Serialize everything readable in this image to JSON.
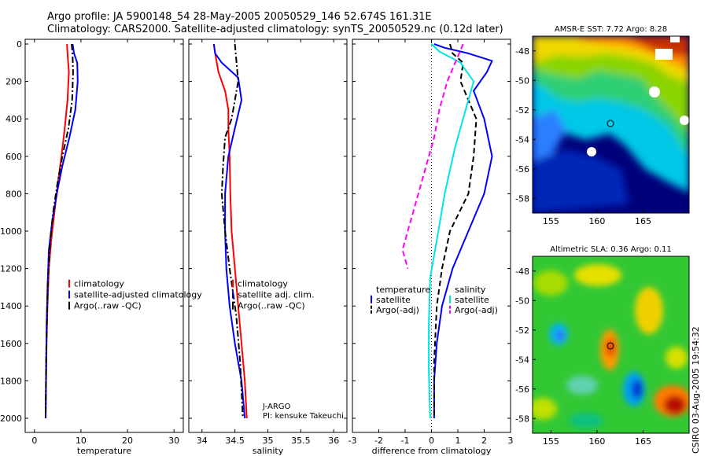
{
  "header": {
    "line1": "Argo profile: JA 5900148_54 28-May-2005 20050529_146 52.674S 161.31E",
    "line2": "Climatology: CARS2000. Satellite-adjusted climatology: synTS_20050529.nc (0.12d later)"
  },
  "credit": "CSIRO 03-Aug-2005 19:54:32",
  "colors": {
    "climatology": "#ff0000",
    "satellite": "#0000ff",
    "argo": "#000000",
    "salinity_satellite": "#00e5e5",
    "salinity_argo": "#ff00ff"
  },
  "chart_data": [
    {
      "type": "line",
      "id": "temperature",
      "xlabel": "temperature",
      "ylabel": "",
      "xlim": [
        -2,
        32
      ],
      "ylim": [
        2000,
        0
      ],
      "xticks": [
        "0",
        "10",
        "20",
        "30"
      ],
      "yticks": [
        "0",
        "200",
        "400",
        "600",
        "800",
        "1000",
        "1200",
        "1400",
        "1600",
        "1800",
        "2000"
      ],
      "series": [
        {
          "name": "climatology",
          "style": "solid",
          "color": "#ff0000",
          "x": [
            7.0,
            7.1,
            7.4,
            7.1,
            6.5,
            5.8,
            5.0,
            4.3,
            3.6,
            3.1,
            2.8,
            2.6,
            2.5,
            2.4
          ],
          "y": [
            0,
            50,
            150,
            300,
            450,
            600,
            750,
            900,
            1050,
            1200,
            1400,
            1600,
            1800,
            2000
          ]
        },
        {
          "name": "satellite-adjusted climatology",
          "style": "solid",
          "color": "#0000ff",
          "x": [
            8.2,
            8.5,
            9.2,
            9.3,
            8.8,
            7.5,
            6.0,
            4.8,
            3.8,
            3.1,
            2.8,
            2.6,
            2.5,
            2.4
          ],
          "y": [
            0,
            50,
            100,
            200,
            350,
            500,
            650,
            800,
            950,
            1100,
            1300,
            1500,
            1750,
            2000
          ]
        },
        {
          "name": "Argo(..raw -QC)",
          "style": "dashdot",
          "color": "#000000",
          "x": [
            8.0,
            8.2,
            8.3,
            8.1,
            7.3,
            6.0,
            4.9,
            4.0,
            3.4,
            2.9,
            2.7,
            2.5,
            2.4
          ],
          "y": [
            0,
            60,
            150,
            300,
            450,
            600,
            750,
            900,
            1050,
            1250,
            1450,
            1700,
            2000
          ]
        }
      ],
      "legend": {
        "position": "center-right",
        "entries": [
          "climatology",
          "satellite-adjusted climatology",
          "Argo(..raw -QC)"
        ]
      }
    },
    {
      "type": "line",
      "id": "salinity",
      "xlabel": "salinity",
      "ylabel": "",
      "xlim": [
        33.8,
        36.2
      ],
      "ylim": [
        2000,
        0
      ],
      "xticks": [
        "34",
        "34.5",
        "35",
        "35.5",
        "36"
      ],
      "series": [
        {
          "name": "climatology",
          "style": "solid",
          "color": "#ff0000",
          "x": [
            34.18,
            34.2,
            34.25,
            34.35,
            34.4,
            34.4,
            34.42,
            34.43,
            34.45,
            34.5,
            34.55,
            34.6,
            34.65,
            34.68
          ],
          "y": [
            0,
            50,
            150,
            250,
            350,
            450,
            600,
            800,
            1000,
            1200,
            1400,
            1600,
            1800,
            2000
          ]
        },
        {
          "name": "satellite adj. clim.",
          "style": "solid",
          "color": "#0000ff",
          "x": [
            34.18,
            34.2,
            34.3,
            34.55,
            34.6,
            34.5,
            34.4,
            34.35,
            34.35,
            34.37,
            34.42,
            34.5,
            34.6,
            34.65
          ],
          "y": [
            0,
            50,
            100,
            180,
            300,
            450,
            600,
            800,
            1000,
            1200,
            1400,
            1600,
            1800,
            2000
          ]
        },
        {
          "name": "Argo(..raw -QC)",
          "style": "dashdot",
          "color": "#000000",
          "x": [
            34.5,
            34.52,
            34.55,
            34.5,
            34.45,
            34.35,
            34.32,
            34.3,
            34.35,
            34.42,
            34.52,
            34.58,
            34.62
          ],
          "y": [
            0,
            80,
            200,
            300,
            400,
            500,
            650,
            800,
            1000,
            1200,
            1450,
            1700,
            2000
          ]
        }
      ],
      "legend": {
        "position": "center-right",
        "entries": [
          "climatology",
          "satellite adj. clim.",
          "Argo(..raw -QC)"
        ]
      },
      "annotation": [
        "J-ARGO",
        "PI: kensuke Takeuchi"
      ]
    },
    {
      "type": "line",
      "id": "difference",
      "xlabel": "difference from climatology",
      "ylabel": "",
      "xlim": [
        -3,
        3
      ],
      "ylim": [
        2000,
        0
      ],
      "xticks": [
        "-3",
        "-2",
        "-1",
        "0",
        "1",
        "2",
        "3"
      ],
      "series": [
        {
          "name": "temperature satellite",
          "style": "solid",
          "color": "#0000ff",
          "x": [
            0.1,
            0.5,
            1.4,
            2.3,
            2.1,
            1.6,
            2.0,
            2.3,
            2.0,
            1.4,
            0.8,
            0.4,
            0.2,
            0.1,
            0.1
          ],
          "y": [
            0,
            20,
            50,
            90,
            150,
            250,
            400,
            600,
            800,
            1000,
            1200,
            1400,
            1600,
            1800,
            2000
          ]
        },
        {
          "name": "temperature Argo(-adj)",
          "style": "dashed",
          "color": "#000000",
          "x": [
            0.7,
            0.8,
            1.2,
            1.1,
            1.7,
            1.6,
            1.4,
            0.7,
            0.4,
            0.2,
            0.1,
            0.1
          ],
          "y": [
            0,
            50,
            100,
            200,
            400,
            600,
            800,
            1000,
            1200,
            1400,
            1700,
            2000
          ]
        },
        {
          "name": "salinity satellite",
          "style": "solid",
          "color": "#00e5e5",
          "x": [
            0.0,
            0.3,
            1.1,
            1.6,
            1.3,
            0.9,
            0.5,
            0.2,
            -0.05,
            -0.1,
            -0.1,
            -0.05
          ],
          "y": [
            0,
            40,
            100,
            200,
            350,
            550,
            800,
            1050,
            1250,
            1500,
            1750,
            2000
          ]
        },
        {
          "name": "salinity Argo(-adj)",
          "style": "dashed",
          "color": "#ff00ff",
          "x": [
            1.2,
            0.9,
            0.6,
            0.3,
            0.1,
            -0.2,
            -0.5,
            -0.8,
            -1.1,
            -0.9
          ],
          "y": [
            0,
            100,
            200,
            350,
            500,
            650,
            800,
            950,
            1100,
            1200
          ]
        }
      ],
      "legend": {
        "position": "center",
        "columns": [
          [
            "temperature",
            "satellite",
            "Argo(-adj)"
          ],
          [
            "salinity",
            "satellite",
            "Argo(-adj)"
          ]
        ]
      }
    },
    {
      "type": "heatmap",
      "id": "sst_map",
      "title": "AMSR-E SST: 7.72 Argo: 8.28",
      "xticks": [
        "155",
        "160",
        "165"
      ],
      "yticks": [
        "-48",
        "-50",
        "-52",
        "-54",
        "-56",
        "-58"
      ],
      "xlim": [
        153,
        170
      ],
      "ylim": [
        -59,
        -47
      ],
      "marker": {
        "lon": 161.31,
        "lat": -52.674
      }
    },
    {
      "type": "heatmap",
      "id": "sla_map",
      "title": "Altimetric SLA: 0.36 Argo: 0.11",
      "xticks": [
        "155",
        "160",
        "165"
      ],
      "yticks": [
        "-48",
        "-50",
        "-52",
        "-54",
        "-56",
        "-58"
      ],
      "xlim": [
        153,
        170
      ],
      "ylim": [
        -59,
        -47
      ],
      "marker": {
        "lon": 161.31,
        "lat": -52.674
      }
    }
  ]
}
